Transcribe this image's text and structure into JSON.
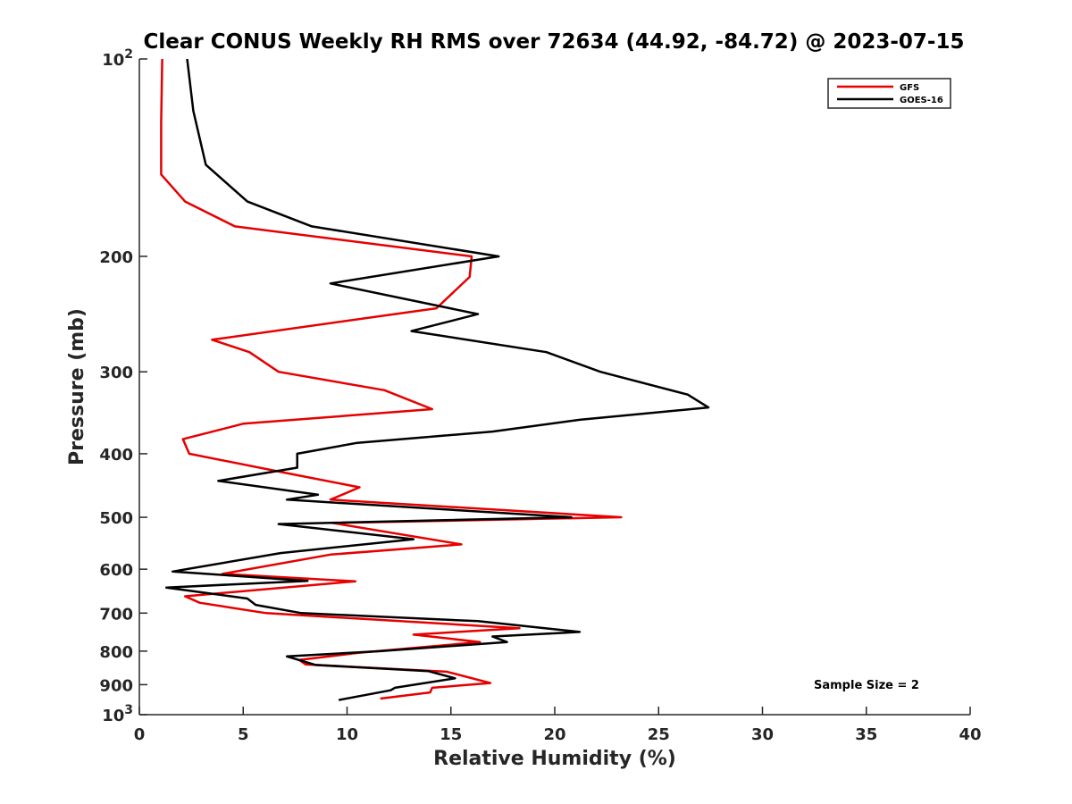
{
  "chart_data": {
    "type": "line",
    "title": "Clear CONUS Weekly RH RMS over 72634 (44.92, -84.72) @ 2023-07-15",
    "xlabel": "Relative Humidity (%)",
    "ylabel": "Pressure (mb)",
    "xlim": [
      0,
      40
    ],
    "ylim": [
      100,
      1000
    ],
    "yscale": "log",
    "y_reversed": true,
    "x_ticks": [
      0,
      5,
      10,
      15,
      20,
      25,
      30,
      35,
      40
    ],
    "x_tick_labels": [
      "0",
      "5",
      "10",
      "15",
      "20",
      "25",
      "30",
      "35",
      "40"
    ],
    "y_ticks": [
      100,
      200,
      300,
      400,
      500,
      600,
      700,
      800,
      900,
      1000
    ],
    "y_tick_labels": [
      "",
      "200",
      "300",
      "400",
      "500",
      "600",
      "700",
      "800",
      "900",
      ""
    ],
    "y_tick_top": {
      "base": "10",
      "exp": "2"
    },
    "y_tick_bottom": {
      "base": "10",
      "exp": "3"
    },
    "grid": false,
    "legend_position": "top-right",
    "annotation": "Sample Size = 2",
    "series": [
      {
        "name": "GFS",
        "color": "#e60000",
        "points": [
          [
            1.1,
            100
          ],
          [
            1.05,
            125
          ],
          [
            1.05,
            150
          ],
          [
            2.2,
            165
          ],
          [
            4.6,
            180
          ],
          [
            16.0,
            200
          ],
          [
            15.9,
            215
          ],
          [
            14.3,
            240
          ],
          [
            3.5,
            268
          ],
          [
            5.3,
            280
          ],
          [
            6.7,
            300
          ],
          [
            11.8,
            320
          ],
          [
            14.1,
            342
          ],
          [
            5.0,
            360
          ],
          [
            2.1,
            380
          ],
          [
            2.4,
            400
          ],
          [
            7.4,
            430
          ],
          [
            10.6,
            450
          ],
          [
            9.2,
            470
          ],
          [
            23.2,
            500
          ],
          [
            9.3,
            510
          ],
          [
            15.5,
            550
          ],
          [
            9.2,
            570
          ],
          [
            4.0,
            610
          ],
          [
            10.4,
            626
          ],
          [
            2.2,
            660
          ],
          [
            2.9,
            675
          ],
          [
            6.1,
            700
          ],
          [
            18.3,
            738
          ],
          [
            13.2,
            755
          ],
          [
            16.4,
            775
          ],
          [
            10.5,
            805
          ],
          [
            7.7,
            825
          ],
          [
            8.0,
            838
          ],
          [
            14.8,
            860
          ],
          [
            16.9,
            895
          ],
          [
            14.1,
            910
          ],
          [
            14.0,
            925
          ],
          [
            11.6,
            945
          ]
        ]
      },
      {
        "name": "GOES-16",
        "color": "#000000",
        "points": [
          [
            2.3,
            100
          ],
          [
            2.6,
            120
          ],
          [
            3.2,
            145
          ],
          [
            5.2,
            165
          ],
          [
            8.3,
            180
          ],
          [
            17.3,
            200
          ],
          [
            9.2,
            220
          ],
          [
            16.3,
            245
          ],
          [
            13.1,
            260
          ],
          [
            19.6,
            280
          ],
          [
            22.2,
            300
          ],
          [
            26.4,
            325
          ],
          [
            27.4,
            340
          ],
          [
            21.2,
            355
          ],
          [
            17.0,
            370
          ],
          [
            10.5,
            385
          ],
          [
            7.6,
            400
          ],
          [
            7.6,
            420
          ],
          [
            3.8,
            440
          ],
          [
            8.6,
            462
          ],
          [
            7.1,
            470
          ],
          [
            20.8,
            500
          ],
          [
            6.7,
            512
          ],
          [
            13.2,
            540
          ],
          [
            6.8,
            567
          ],
          [
            1.6,
            605
          ],
          [
            8.1,
            625
          ],
          [
            1.3,
            640
          ],
          [
            5.2,
            665
          ],
          [
            5.6,
            680
          ],
          [
            7.8,
            700
          ],
          [
            16.3,
            720
          ],
          [
            21.2,
            748
          ],
          [
            17.0,
            760
          ],
          [
            17.7,
            775
          ],
          [
            11.6,
            800
          ],
          [
            7.1,
            815
          ],
          [
            8.5,
            840
          ],
          [
            13.9,
            858
          ],
          [
            15.2,
            880
          ],
          [
            12.3,
            910
          ],
          [
            12.1,
            918
          ],
          [
            9.6,
            950
          ]
        ]
      }
    ]
  }
}
